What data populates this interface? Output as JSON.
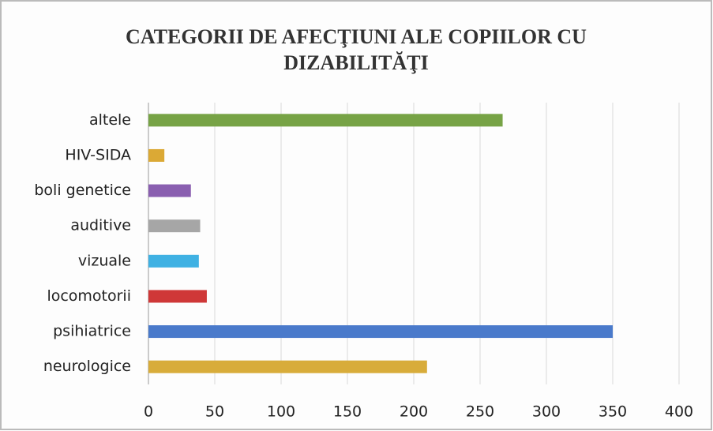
{
  "chart_data": {
    "type": "bar",
    "orientation": "horizontal",
    "title": "CATEGORII DE AFECŢIUNI ALE COPIILOR CU DIZABILITĂŢI",
    "categories": [
      "altele",
      "HIV-SIDA",
      "boli genetice",
      "auditive",
      "vizuale",
      "locomotorii",
      "psihiatrice",
      "neurologice"
    ],
    "values": [
      267,
      12,
      32,
      39,
      38,
      44,
      350,
      210
    ],
    "colors": [
      "#77a346",
      "#dba935",
      "#8a5fb0",
      "#a6a6a6",
      "#3fb1e3",
      "#cf3838",
      "#4a7acb",
      "#d8ac3a"
    ],
    "xlim": [
      0,
      400
    ],
    "xticks": [
      0,
      50,
      100,
      150,
      200,
      250,
      300,
      350,
      400
    ],
    "grid": true
  }
}
